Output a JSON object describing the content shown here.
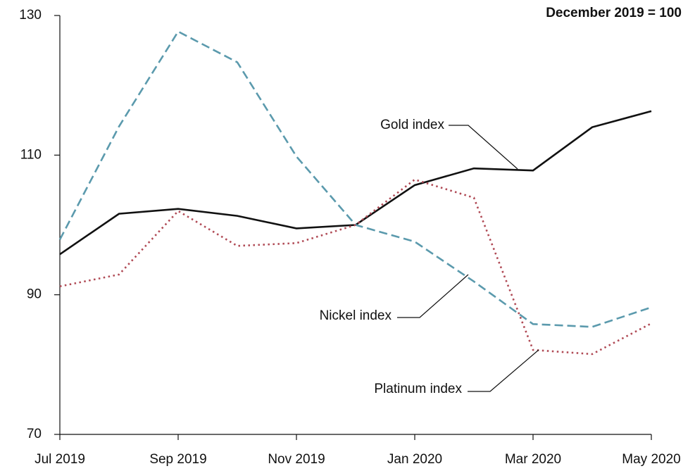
{
  "chart_data": {
    "type": "line",
    "subtitle": "December 2019 = 100",
    "categories": [
      "Jul 2019",
      null,
      "Sep 2019",
      null,
      "Nov 2019",
      null,
      "Jan 2020",
      null,
      "Mar 2020",
      null,
      "May 2020"
    ],
    "series": [
      {
        "name": "Gold index",
        "color": "#111111",
        "dash": "solid",
        "values": [
          95.8,
          101.6,
          102.3,
          101.3,
          99.5,
          100,
          105.7,
          108.1,
          107.8,
          114.0,
          116.3
        ]
      },
      {
        "name": "Nickel index",
        "color": "#5b9aad",
        "dash": "dashed",
        "values": [
          97.9,
          114.1,
          127.7,
          123.3,
          109.8,
          100,
          97.6,
          91.9,
          85.8,
          85.4,
          88.2
        ]
      },
      {
        "name": "Platinum index",
        "color": "#b04a55",
        "dash": "dotted",
        "values": [
          91.2,
          92.9,
          102.0,
          97.0,
          97.4,
          100,
          106.5,
          103.9,
          82.1,
          81.5,
          85.9
        ]
      }
    ],
    "ylim": [
      70,
      130
    ],
    "yticks": [
      70,
      90,
      110,
      130
    ],
    "grid": false
  }
}
